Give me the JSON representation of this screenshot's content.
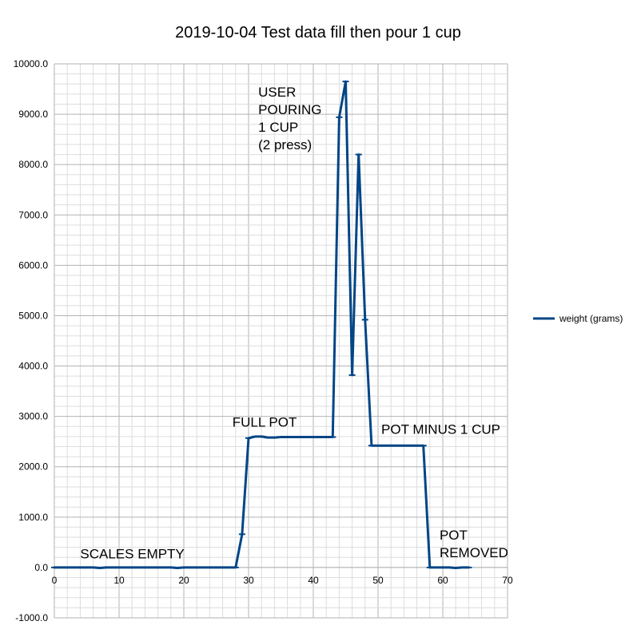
{
  "chart_data": {
    "type": "line",
    "title": "2019-10-04 Test data fill then pour 1 cup",
    "xlim": [
      0,
      70
    ],
    "ylim": [
      -1000,
      10000
    ],
    "x_ticks": [
      "0",
      "10",
      "20",
      "30",
      "40",
      "50",
      "60",
      "70"
    ],
    "y_ticks": [
      "-1000.0",
      "0.0",
      "1000.0",
      "2000.0",
      "3000.0",
      "4000.0",
      "5000.0",
      "6000.0",
      "7000.0",
      "8000.0",
      "9000.0",
      "10000.0"
    ],
    "grid": true,
    "legend_position": "right",
    "series": [
      {
        "name": "weight (grams)",
        "color": "#004586",
        "x": [
          0,
          1,
          2,
          3,
          4,
          5,
          6,
          7,
          8,
          9,
          10,
          11,
          12,
          13,
          14,
          15,
          16,
          17,
          18,
          19,
          20,
          21,
          22,
          23,
          24,
          25,
          26,
          27,
          28,
          29,
          30,
          31,
          32,
          33,
          34,
          35,
          36,
          37,
          38,
          39,
          40,
          41,
          42,
          43,
          44,
          45,
          46,
          47,
          48,
          49,
          50,
          51,
          52,
          53,
          54,
          55,
          56,
          57,
          58,
          59,
          60,
          61,
          62,
          63,
          64
        ],
        "y": [
          0,
          0,
          0,
          0,
          0,
          0,
          0,
          -10,
          0,
          0,
          0,
          0,
          0,
          0,
          0,
          0,
          0,
          0,
          0,
          -10,
          0,
          0,
          0,
          0,
          0,
          0,
          0,
          0,
          0,
          660,
          2570,
          2600,
          2600,
          2580,
          2580,
          2590,
          2590,
          2590,
          2590,
          2590,
          2590,
          2590,
          2590,
          2590,
          8940,
          9650,
          3820,
          8200,
          4920,
          2420,
          2420,
          2420,
          2420,
          2420,
          2420,
          2420,
          2420,
          2420,
          0,
          0,
          0,
          0,
          -10,
          0,
          0
        ]
      }
    ],
    "annotations": [
      {
        "lines": [
          "USER",
          "POURING",
          "1 CUP",
          "(2 press)"
        ],
        "x": 31.5,
        "y": 9350
      },
      {
        "lines": [
          "FULL POT"
        ],
        "x": 27.5,
        "y": 2800
      },
      {
        "lines": [
          "POT MINUS 1 CUP"
        ],
        "x": 50.5,
        "y": 2650
      },
      {
        "lines": [
          "POT",
          "REMOVED"
        ],
        "x": 59.5,
        "y": 550
      },
      {
        "lines": [
          "SCALES EMPTY"
        ],
        "x": 4,
        "y": 180
      }
    ]
  }
}
